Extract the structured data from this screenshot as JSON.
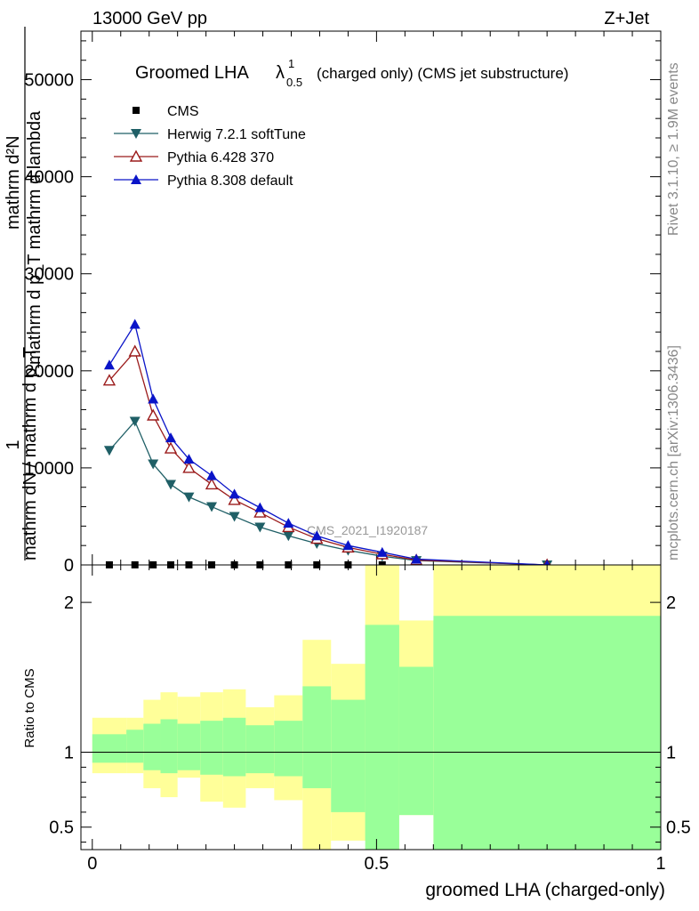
{
  "header": {
    "left": "13000 GeV pp",
    "right": "Z+Jet"
  },
  "side_labels": {
    "rivet": "Rivet 3.1.10, ≥ 1.9M events",
    "mcplots": "mcplots.cern.ch [arXiv:1306.3436]"
  },
  "watermark": "CMS_2021_I1920187",
  "colors": {
    "cms": "#000000",
    "herwig": "#1f5f66",
    "pythia6": "#9b1b1b",
    "pythia8": "#0a14c8",
    "band_yellow": "#ffff99",
    "band_green": "#99ff99"
  },
  "chart_data": [
    {
      "type": "line",
      "title_main": "Groomed LHA",
      "title_lambda": "λ",
      "title_sup": "1",
      "title_sub": "0.5",
      "title_rest": "(charged only) (CMS jet substructure)",
      "ylabel_top": "mathrm d²N",
      "ylabel_bottom": "mathrm d p_T mathrm d lambda",
      "ylabel_top2": "1",
      "ylabel_main": "mathrm dN / mathrm d p_T",
      "ylim": [
        0,
        55000
      ],
      "yticks": [
        {
          "v": 0,
          "label": "0"
        },
        {
          "v": 10000,
          "label": "10000"
        },
        {
          "v": 20000,
          "label": "20000"
        },
        {
          "v": 30000,
          "label": "30000"
        },
        {
          "v": 40000,
          "label": "40000"
        },
        {
          "v": 50000,
          "label": "50000"
        }
      ],
      "xlim": [
        -0.02,
        1.0
      ],
      "x": [
        0.03,
        0.075,
        0.107,
        0.138,
        0.17,
        0.21,
        0.25,
        0.295,
        0.345,
        0.395,
        0.45,
        0.51,
        0.57,
        0.8
      ],
      "series": [
        {
          "name": "CMS",
          "key": "cms",
          "marker": "square",
          "values": [
            10,
            10,
            10,
            10,
            10,
            10,
            10,
            10,
            10,
            10,
            10,
            10,
            10,
            10
          ]
        },
        {
          "name": "Herwig 7.2.1 softTune",
          "key": "herwig",
          "marker": "triangle-down",
          "values": [
            11800,
            14800,
            10400,
            8300,
            7000,
            6000,
            5000,
            3900,
            3000,
            2200,
            1500,
            900,
            450,
            0
          ]
        },
        {
          "name": "Pythia 6.428 370",
          "key": "pythia6",
          "marker": "triangle-up-open",
          "values": [
            19000,
            22000,
            15400,
            12000,
            10000,
            8300,
            6700,
            5400,
            3900,
            2700,
            1800,
            1100,
            500,
            0
          ]
        },
        {
          "name": "Pythia 8.308 default",
          "key": "pythia8",
          "marker": "triangle-up",
          "values": [
            20600,
            24800,
            17100,
            13100,
            10900,
            9200,
            7300,
            5900,
            4300,
            3000,
            2000,
            1300,
            600,
            0
          ]
        }
      ]
    },
    {
      "type": "area",
      "ylabel": "Ratio to CMS",
      "xlabel": "groomed LHA (charged-only)",
      "xlim": [
        -0.02,
        1.0
      ],
      "ylim": [
        0.35,
        2.25
      ],
      "yticks": [
        {
          "v": 0.5,
          "label": "0.5"
        },
        {
          "v": 1,
          "label": "1"
        },
        {
          "v": 2,
          "label": "2"
        }
      ],
      "xticks": [
        {
          "v": 0,
          "label": "0"
        },
        {
          "v": 0.5,
          "label": "0.5"
        },
        {
          "v": 1,
          "label": "1"
        }
      ],
      "bins": [
        {
          "x0": 0.0,
          "x1": 0.06,
          "y_lo": 0.86,
          "y_hi": 1.23,
          "g_lo": 0.93,
          "g_hi": 1.12
        },
        {
          "x0": 0.06,
          "x1": 0.09,
          "y_lo": 0.86,
          "y_hi": 1.23,
          "g_lo": 0.93,
          "g_hi": 1.15
        },
        {
          "x0": 0.09,
          "x1": 0.12,
          "y_lo": 0.76,
          "y_hi": 1.35,
          "g_lo": 0.88,
          "g_hi": 1.19
        },
        {
          "x0": 0.12,
          "x1": 0.15,
          "y_lo": 0.7,
          "y_hi": 1.4,
          "g_lo": 0.86,
          "g_hi": 1.22
        },
        {
          "x0": 0.15,
          "x1": 0.19,
          "y_lo": 0.83,
          "y_hi": 1.37,
          "g_lo": 0.88,
          "g_hi": 1.19
        },
        {
          "x0": 0.19,
          "x1": 0.23,
          "y_lo": 0.67,
          "y_hi": 1.4,
          "g_lo": 0.85,
          "g_hi": 1.21
        },
        {
          "x0": 0.23,
          "x1": 0.27,
          "y_lo": 0.63,
          "y_hi": 1.42,
          "g_lo": 0.84,
          "g_hi": 1.23
        },
        {
          "x0": 0.27,
          "x1": 0.32,
          "y_lo": 0.76,
          "y_hi": 1.3,
          "g_lo": 0.86,
          "g_hi": 1.18
        },
        {
          "x0": 0.32,
          "x1": 0.37,
          "y_lo": 0.68,
          "y_hi": 1.38,
          "g_lo": 0.84,
          "g_hi": 1.21
        },
        {
          "x0": 0.37,
          "x1": 0.42,
          "y_lo": 0.35,
          "y_hi": 1.75,
          "g_lo": 0.76,
          "g_hi": 1.44
        },
        {
          "x0": 0.42,
          "x1": 0.48,
          "y_lo": 0.35,
          "y_hi": 1.59,
          "g_lo": 0.6,
          "g_hi": 1.35
        },
        {
          "x0": 0.48,
          "x1": 0.54,
          "y_lo": 0.35,
          "y_hi": 2.25,
          "g_lo": 0.35,
          "g_hi": 1.85
        },
        {
          "x0": 0.54,
          "x1": 0.6,
          "y_lo": 0.35,
          "y_hi": 1.88,
          "g_lo": 0.58,
          "g_hi": 1.57
        },
        {
          "x0": 0.6,
          "x1": 1.0,
          "y_lo": 0.35,
          "y_hi": 2.25,
          "g_lo": 0.35,
          "g_hi": 1.91
        }
      ],
      "gaps": [
        {
          "x0": 0.42,
          "x1": 0.48,
          "y_lo": 0.35,
          "y_hi": 0.41
        },
        {
          "x0": 0.54,
          "x1": 0.6,
          "y_lo": 0.35,
          "y_hi": 0.58
        },
        {
          "x0": 0.54,
          "x1": 0.6,
          "y_lo": 1.88,
          "y_hi": 2.25
        }
      ],
      "reference": 1
    }
  ]
}
